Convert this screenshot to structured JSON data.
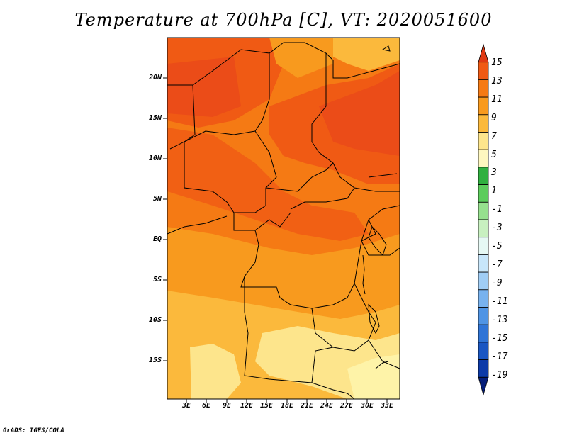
{
  "title": "Temperature at 700hPa [C], VT: 2020051600",
  "footer": "GrADS: IGES/COLA",
  "map": {
    "lat_labels": [
      "20N",
      "15N",
      "10N",
      "5N",
      "EQ",
      "5S",
      "10S",
      "15S"
    ],
    "lon_labels": [
      "3E",
      "6E",
      "9E",
      "12E",
      "15E",
      "18E",
      "21E",
      "24E",
      "27E",
      "30E",
      "33E"
    ]
  },
  "colorbar": {
    "labels": [
      "15",
      "13",
      "11",
      "9",
      "7",
      "5",
      "3",
      "1",
      "-1",
      "-3",
      "-5",
      "-7",
      "-9",
      "-11",
      "-13",
      "-15",
      "-17",
      "-19"
    ],
    "colors": [
      "#e03a14",
      "#f05a14",
      "#f57a14",
      "#f89a1e",
      "#fbb93c",
      "#fde58c",
      "#fef7c0",
      "#30b040",
      "#5ccc5c",
      "#96e08e",
      "#c8f0c0",
      "#e6f8f4",
      "#c8e6fa",
      "#a0cdf5",
      "#78b2ee",
      "#4f94e4",
      "#2f74d6",
      "#1a56c2",
      "#0c3aa8",
      "#051e7a"
    ]
  }
}
